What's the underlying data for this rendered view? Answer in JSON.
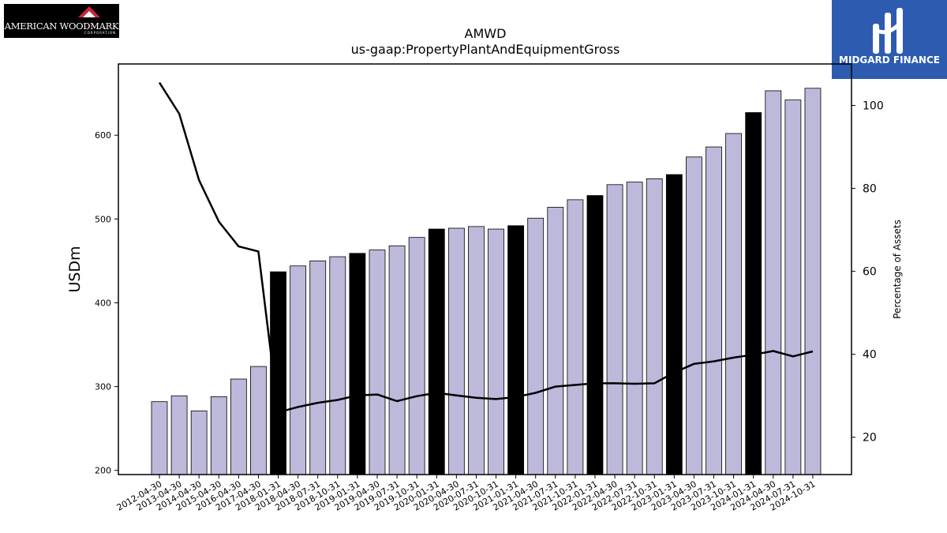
{
  "logos": {
    "left": {
      "text": "AMERICAN WOODMARK",
      "subtext": "CORPORATION"
    },
    "right": {
      "text": "MIDGARD FINANCE"
    }
  },
  "chart_data": {
    "type": "bar",
    "title": "AMWD",
    "subtitle": "us-gaap:PropertyPlantAndEquipmentGross",
    "ylabel": "USDm",
    "y2label": "Percentage of Assets",
    "ylim": [
      195,
      685
    ],
    "y2lim": [
      11,
      110
    ],
    "yticks": [
      200,
      300,
      400,
      500,
      600
    ],
    "y2ticks": [
      20,
      40,
      60,
      80,
      100
    ],
    "colors": {
      "bar": "#bcb9db",
      "highlight": "#000000",
      "line": "#000000"
    },
    "categories": [
      "2012-04-30",
      "2013-04-30",
      "2014-04-30",
      "2015-04-30",
      "2016-04-30",
      "2017-04-30",
      "2018-01-31",
      "2018-04-30",
      "2018-07-31",
      "2018-10-31",
      "2019-01-31",
      "2019-04-30",
      "2019-07-31",
      "2019-10-31",
      "2020-01-31",
      "2020-04-30",
      "2020-07-31",
      "2020-10-31",
      "2021-01-31",
      "2021-04-30",
      "2021-07-31",
      "2021-10-31",
      "2022-01-31",
      "2022-04-30",
      "2022-07-31",
      "2022-10-31",
      "2023-01-31",
      "2023-04-30",
      "2023-07-31",
      "2023-10-31",
      "2024-01-31",
      "2024-04-30",
      "2024-07-31",
      "2024-10-31"
    ],
    "values": [
      282,
      289,
      271,
      288,
      309,
      324,
      437,
      444,
      450,
      455,
      459,
      463,
      468,
      478,
      488,
      489,
      491,
      488,
      492,
      501,
      514,
      523,
      528,
      541,
      544,
      548,
      553,
      574,
      586,
      602,
      627,
      653,
      642,
      656
    ],
    "highlighted": [
      false,
      false,
      false,
      false,
      false,
      false,
      true,
      false,
      false,
      false,
      true,
      false,
      false,
      false,
      true,
      false,
      false,
      false,
      true,
      false,
      false,
      false,
      true,
      false,
      false,
      false,
      true,
      false,
      false,
      false,
      true,
      false,
      false,
      false
    ],
    "pct_assets": [
      105.5,
      98,
      82,
      72,
      66,
      64.8,
      26,
      27.3,
      28.3,
      29,
      30.1,
      30.3,
      28.7,
      29.9,
      30.7,
      30.1,
      29.5,
      29.2,
      29.7,
      30.7,
      32.2,
      32.6,
      33,
      33,
      32.9,
      33,
      35.6,
      37.7,
      38.3,
      39.2,
      39.9,
      40.8,
      39.5,
      40.7
    ]
  }
}
